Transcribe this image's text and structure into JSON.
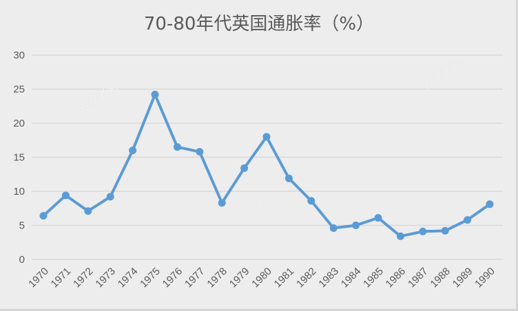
{
  "chart_data": {
    "type": "line",
    "title": "70-80年代英国通胀率（%）",
    "xlabel": "",
    "ylabel": "",
    "categories": [
      "1970",
      "1971",
      "1972",
      "1973",
      "1974",
      "1975",
      "1976",
      "1977",
      "1978",
      "1979",
      "1980",
      "1981",
      "1982",
      "1983",
      "1984",
      "1985",
      "1986",
      "1987",
      "1988",
      "1989",
      "1990"
    ],
    "series": [
      {
        "name": "英国通胀率",
        "values": [
          6.4,
          9.4,
          7.1,
          9.2,
          16.0,
          24.2,
          16.5,
          15.8,
          8.3,
          13.4,
          18.0,
          11.9,
          8.6,
          4.6,
          5.0,
          6.1,
          3.4,
          4.1,
          4.2,
          5.8,
          8.1
        ],
        "color": "#5b9bd5"
      }
    ],
    "ylim": [
      0,
      30
    ],
    "yticks": [
      0,
      5,
      10,
      15,
      20,
      25,
      30
    ],
    "grid": true,
    "legend": "none"
  },
  "watermark": "观察者网"
}
